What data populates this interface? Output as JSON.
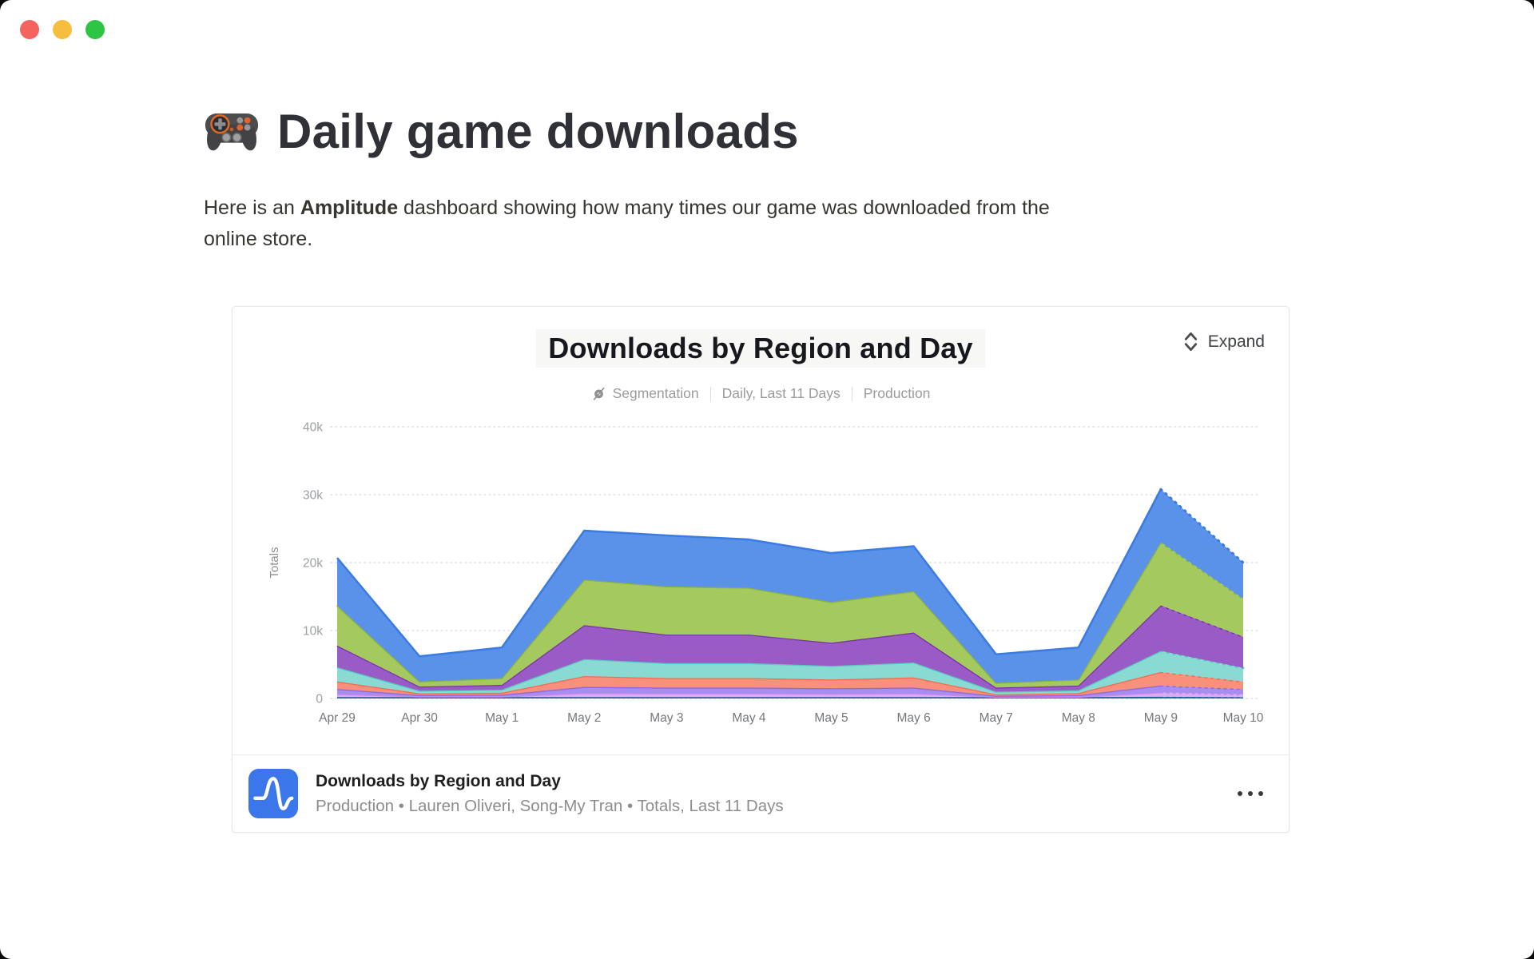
{
  "window": {
    "controls": [
      "close",
      "minimize",
      "zoom"
    ]
  },
  "page": {
    "title": "Daily game downloads",
    "title_icon": "gamepad-emoji",
    "intro_prefix": "Here is an ",
    "intro_bold": "Amplitude",
    "intro_suffix": " dashboard showing how many times our game was downloaded from the online store."
  },
  "chart_card": {
    "title": "Downloads by Region and Day",
    "expand_label": "Expand",
    "expand_icon": "expand-chevrons-icon",
    "meta_icon": "segmentation-icon",
    "meta": [
      "Segmentation",
      "Daily, Last 11 Days",
      "Production"
    ],
    "footer": {
      "title": "Downloads by Region and Day",
      "subtitle": "Production • Lauren Oliveri, Song-My Tran • Totals, Last 11 Days",
      "logo": "amplitude-logo",
      "more_icon": "more-dots-icon"
    }
  },
  "chart_data": {
    "type": "area",
    "stacked": true,
    "title": "Downloads by Region and Day",
    "xlabel": "",
    "ylabel": "Totals",
    "ylim": [
      0,
      40000
    ],
    "ytick_values": [
      0,
      10000,
      20000,
      30000,
      40000
    ],
    "ytick_labels": [
      "0",
      "10k",
      "20k",
      "30k",
      "40k"
    ],
    "grid": "dotted-horizontal",
    "legend": "none",
    "incomplete_last_segment": true,
    "categories": [
      "Apr 29",
      "Apr 30",
      "May 1",
      "May 2",
      "May 3",
      "May 4",
      "May 5",
      "May 6",
      "May 7",
      "May 8",
      "May 9",
      "May 10"
    ],
    "series": [
      {
        "name": "navy",
        "fill": "#2c6e9e",
        "stroke": "#265f88",
        "values": [
          200,
          200,
          200,
          200,
          200,
          200,
          200,
          200,
          200,
          200,
          250,
          200
        ]
      },
      {
        "name": "pink",
        "fill": "#dcabf5",
        "stroke": "#cb87ef",
        "values": [
          450,
          100,
          100,
          600,
          550,
          550,
          500,
          550,
          50,
          50,
          650,
          400
        ]
      },
      {
        "name": "violet",
        "fill": "#a88df0",
        "stroke": "#8d67e2",
        "values": [
          750,
          200,
          250,
          900,
          850,
          850,
          800,
          850,
          150,
          250,
          1000,
          800
        ]
      },
      {
        "name": "salmon",
        "fill": "#f9907b",
        "stroke": "#f66a50",
        "values": [
          1100,
          250,
          300,
          1600,
          1400,
          1400,
          1300,
          1500,
          200,
          300,
          2000,
          1100
        ]
      },
      {
        "name": "teal",
        "fill": "#89dad2",
        "stroke": "#57c9bf",
        "values": [
          2100,
          400,
          450,
          2500,
          2200,
          2200,
          2000,
          2200,
          400,
          400,
          3100,
          2000
        ]
      },
      {
        "name": "purple",
        "fill": "#995cc6",
        "stroke": "#7d2fae",
        "values": [
          3200,
          600,
          700,
          5000,
          4200,
          4200,
          3400,
          4400,
          600,
          700,
          6700,
          4600
        ]
      },
      {
        "name": "green",
        "fill": "#a4ca5f",
        "stroke": "#8cb23b",
        "values": [
          5900,
          750,
          1000,
          6700,
          7100,
          6900,
          6000,
          6100,
          700,
          900,
          9300,
          5600
        ]
      },
      {
        "name": "blue",
        "fill": "#5a92e9",
        "stroke": "#3c7ce2",
        "values": [
          7000,
          3700,
          4500,
          7200,
          7500,
          7100,
          7200,
          6600,
          4200,
          4700,
          7800,
          5300
        ]
      }
    ]
  },
  "colors": {
    "traffic_red": "#f4635e",
    "traffic_yellow": "#f7bd3f",
    "traffic_green": "#2fc544",
    "amplitude_blue": "#3b77ea",
    "grid_line": "#d7e1e1",
    "axis_text": "#9ca0a2"
  }
}
